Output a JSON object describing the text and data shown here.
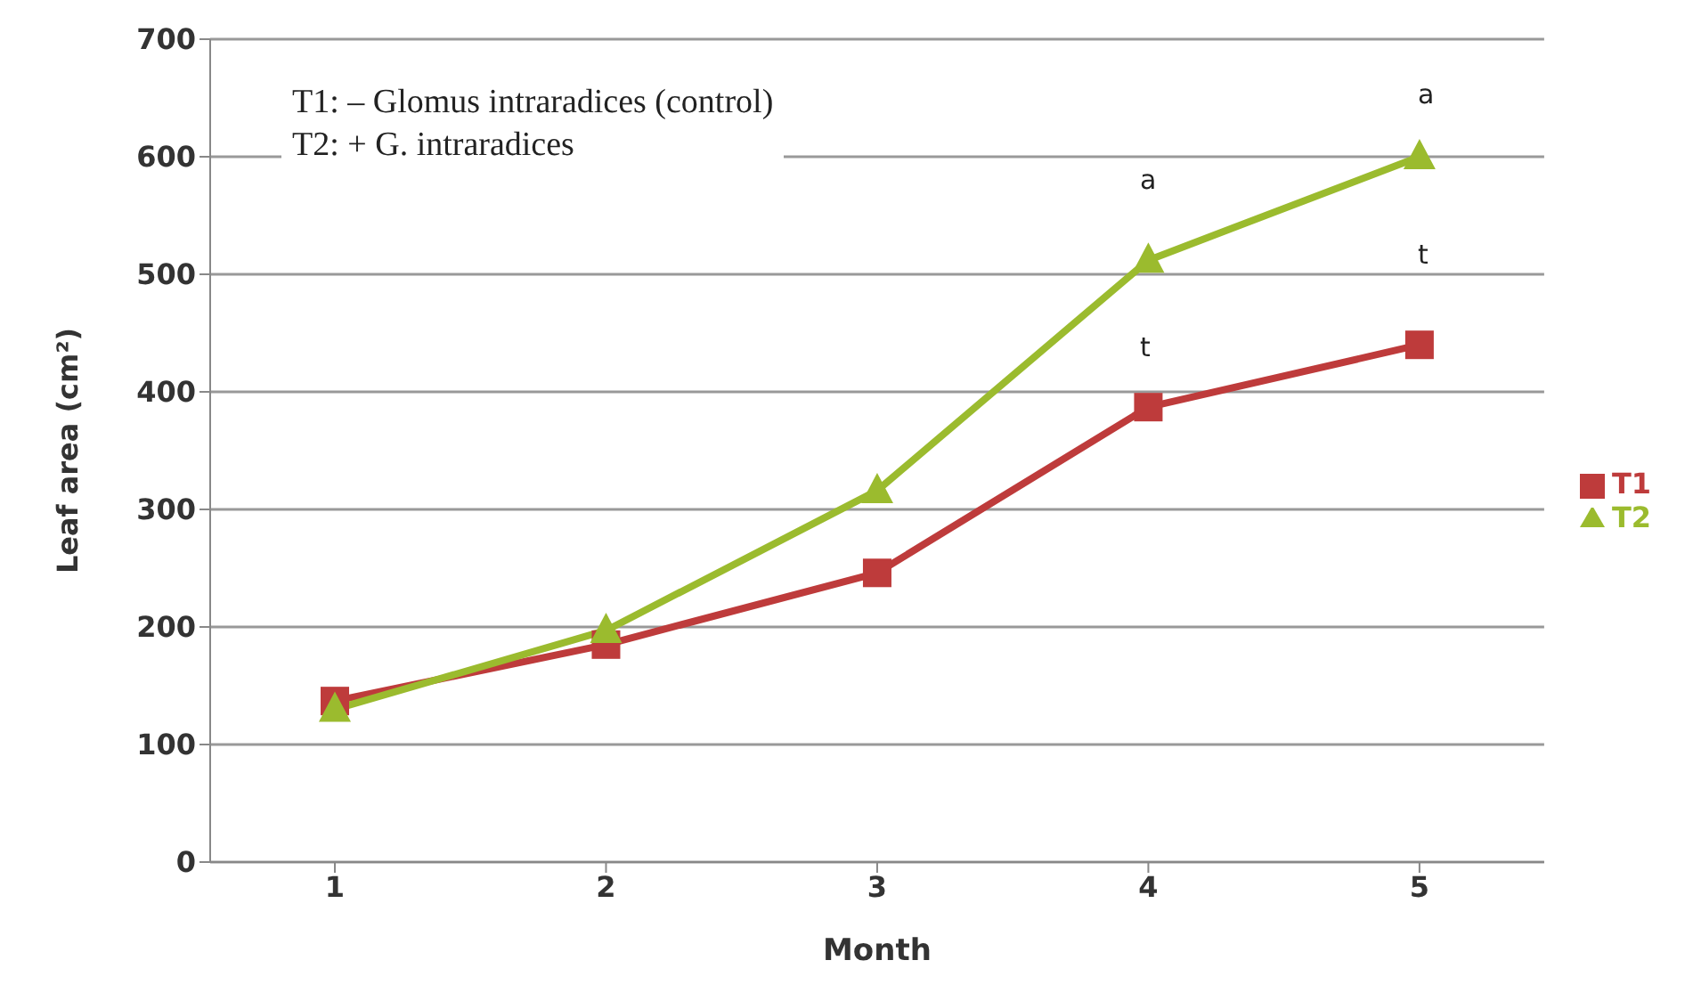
{
  "chart_data": {
    "type": "line",
    "xlabel": "Month",
    "ylabel": "Leaf area (cm²)",
    "categories": [
      "1",
      "2",
      "3",
      "4",
      "5"
    ],
    "series": [
      {
        "name": "T1",
        "color": "#be3b3b",
        "marker": "square",
        "values": [
          137,
          185,
          246,
          387,
          440
        ]
      },
      {
        "name": "T2",
        "color": "#9bbb2e",
        "marker": "triangle",
        "values": [
          130,
          197,
          316,
          512,
          600
        ]
      }
    ],
    "ylim": [
      0,
      700
    ],
    "yticks": [
      0,
      100,
      200,
      300,
      400,
      500,
      600,
      700
    ],
    "grid": "y",
    "legend": "right",
    "annotations": [
      "T1: – Glomus intraradices (control)",
      "T2: + G. intraradices",
      "a",
      "t",
      "a",
      "t"
    ]
  }
}
